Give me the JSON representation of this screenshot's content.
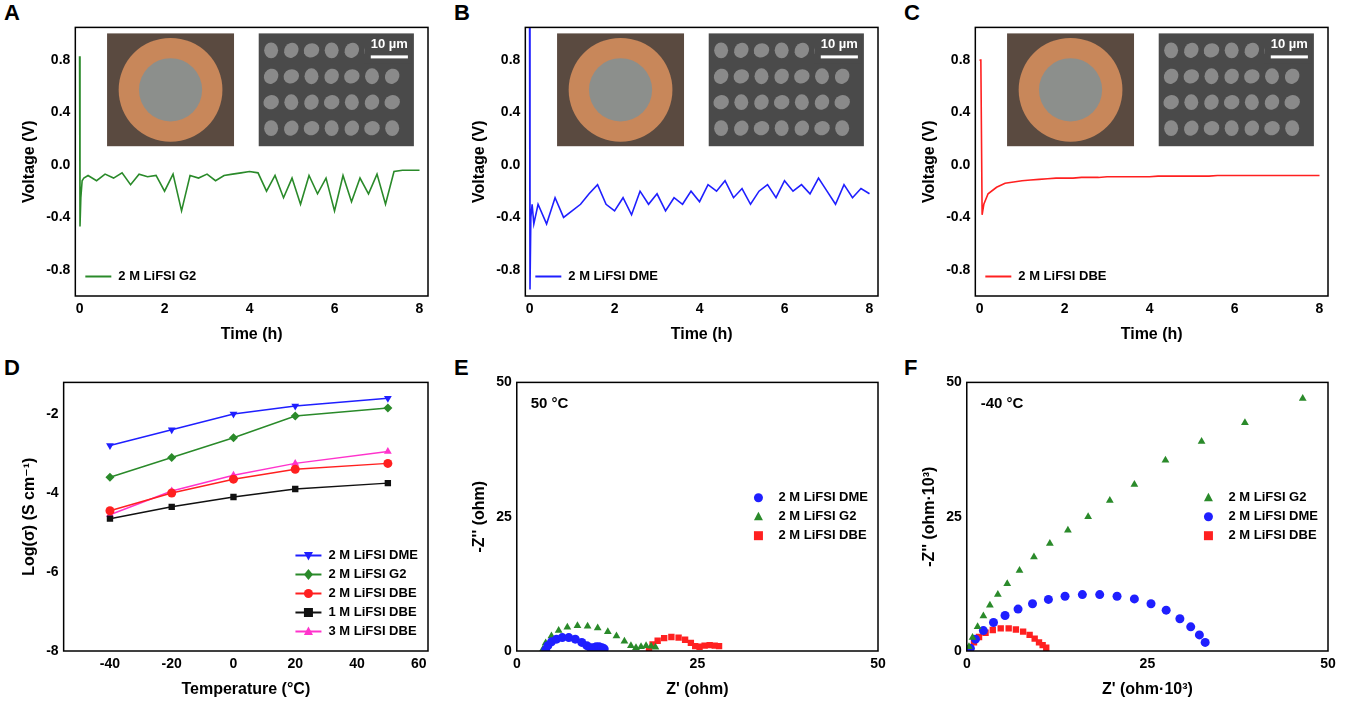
{
  "chart_data": [
    {
      "panel": "A",
      "type": "line",
      "x_label": "Time (h)",
      "y_label": "Voltage (V)",
      "xlim": [
        -0.1,
        8.2
      ],
      "xticks": [
        0,
        2,
        4,
        6,
        8
      ],
      "ylim": [
        -1.0,
        1.05
      ],
      "yticks": [
        -0.8,
        -0.4,
        {
          "value": 0,
          "label": "0.0"
        },
        0.4,
        0.8
      ],
      "grid": false,
      "legend": "lower left",
      "inset_label": "10 µm",
      "x": [
        0,
        0.01,
        0.03,
        0.06,
        0.1,
        0.2,
        0.4,
        0.6,
        0.8,
        1.0,
        1.2,
        1.4,
        1.6,
        1.8,
        2.0,
        2.2,
        2.4,
        2.6,
        2.8,
        3.0,
        3.2,
        3.4,
        3.6,
        3.8,
        4.0,
        4.2,
        4.4,
        4.6,
        4.8,
        5.0,
        5.2,
        5.4,
        5.6,
        5.8,
        6.0,
        6.2,
        6.4,
        6.6,
        6.8,
        7.0,
        7.2,
        7.4,
        7.6,
        7.8,
        8.0
      ],
      "series": [
        {
          "name": "2 M LiFSI G2",
          "color": "#2a8a2a",
          "values": [
            0.83,
            -0.47,
            -0.25,
            -0.12,
            -0.1,
            -0.08,
            -0.12,
            -0.07,
            -0.1,
            -0.06,
            -0.15,
            -0.07,
            -0.09,
            -0.08,
            -0.2,
            -0.07,
            -0.35,
            -0.08,
            -0.1,
            -0.07,
            -0.12,
            -0.08,
            -0.07,
            -0.06,
            -0.05,
            -0.06,
            -0.2,
            -0.08,
            -0.25,
            -0.1,
            -0.3,
            -0.08,
            -0.22,
            -0.1,
            -0.35,
            -0.08,
            -0.28,
            -0.1,
            -0.22,
            -0.07,
            -0.3,
            -0.05,
            -0.04,
            -0.04,
            -0.04
          ]
        }
      ]
    },
    {
      "panel": "B",
      "type": "line",
      "x_label": "Time (h)",
      "y_label": "Voltage (V)",
      "xlim": [
        -0.1,
        8.2
      ],
      "xticks": [
        0,
        2,
        4,
        6,
        8
      ],
      "ylim": [
        -1.0,
        1.05
      ],
      "yticks": [
        -0.8,
        -0.4,
        {
          "value": 0,
          "label": "0.0"
        },
        0.4,
        0.8
      ],
      "grid": false,
      "legend": "lower left",
      "inset_label": "10 µm",
      "x": [
        0,
        0.01,
        0.03,
        0.06,
        0.1,
        0.2,
        0.4,
        0.6,
        0.8,
        1.0,
        1.2,
        1.4,
        1.6,
        1.8,
        2.0,
        2.2,
        2.4,
        2.6,
        2.8,
        3.0,
        3.2,
        3.4,
        3.6,
        3.8,
        4.0,
        4.2,
        4.4,
        4.6,
        4.8,
        5.0,
        5.2,
        5.4,
        5.6,
        5.8,
        6.0,
        6.2,
        6.4,
        6.6,
        6.8,
        7.0,
        7.2,
        7.4,
        7.6,
        7.8,
        8.0
      ],
      "series": [
        {
          "name": "2 M LiFSI DME",
          "color": "#1f1fff",
          "values": [
            1.05,
            -0.95,
            -0.4,
            -0.3,
            -0.45,
            -0.3,
            -0.45,
            -0.25,
            -0.4,
            -0.35,
            -0.3,
            -0.22,
            -0.15,
            -0.3,
            -0.35,
            -0.25,
            -0.38,
            -0.2,
            -0.3,
            -0.22,
            -0.35,
            -0.25,
            -0.3,
            -0.2,
            -0.28,
            -0.15,
            -0.2,
            -0.12,
            -0.25,
            -0.18,
            -0.3,
            -0.2,
            -0.15,
            -0.25,
            -0.12,
            -0.2,
            -0.15,
            -0.22,
            -0.1,
            -0.2,
            -0.3,
            -0.15,
            -0.25,
            -0.18,
            -0.22
          ]
        }
      ]
    },
    {
      "panel": "C",
      "type": "line",
      "x_label": "Time (h)",
      "y_label": "Voltage (V)",
      "xlim": [
        -0.1,
        8.2
      ],
      "xticks": [
        0,
        2,
        4,
        6,
        8
      ],
      "ylim": [
        -1.0,
        1.05
      ],
      "yticks": [
        -0.8,
        -0.4,
        {
          "value": 0,
          "label": "0.0"
        },
        0.4,
        0.8
      ],
      "grid": false,
      "legend": "lower left",
      "inset_label": "10 µm",
      "x": [
        0,
        0.01,
        0.03,
        0.06,
        0.1,
        0.2,
        0.4,
        0.6,
        0.8,
        1.0,
        1.2,
        1.4,
        1.6,
        1.8,
        2.0,
        2.2,
        2.4,
        2.6,
        2.8,
        3.0,
        3.2,
        3.4,
        3.6,
        3.8,
        4.0,
        4.2,
        4.4,
        4.6,
        4.8,
        5.0,
        5.2,
        5.4,
        5.6,
        5.8,
        6.0,
        6.2,
        6.4,
        6.6,
        6.8,
        7.0,
        7.2,
        7.4,
        7.6,
        7.8,
        8.0
      ],
      "series": [
        {
          "name": "2 M LiFSI DBE",
          "color": "#ff2020",
          "values": [
            0.8,
            0.8,
            0.8,
            -0.38,
            -0.3,
            -0.22,
            -0.17,
            -0.14,
            -0.13,
            -0.12,
            -0.115,
            -0.11,
            -0.105,
            -0.1,
            -0.1,
            -0.1,
            -0.095,
            -0.095,
            -0.095,
            -0.09,
            -0.09,
            -0.09,
            -0.09,
            -0.09,
            -0.09,
            -0.085,
            -0.085,
            -0.085,
            -0.085,
            -0.085,
            -0.085,
            -0.085,
            -0.08,
            -0.08,
            -0.08,
            -0.08,
            -0.08,
            -0.08,
            -0.08,
            -0.08,
            -0.08,
            -0.08,
            -0.08,
            -0.08,
            -0.08
          ]
        }
      ]
    },
    {
      "panel": "D",
      "type": "line",
      "x_label": "Temperature (°C)",
      "y_label": "Log(σ) (S cm⁻¹)",
      "xlim": [
        -55,
        63
      ],
      "xticks": [
        -40,
        -20,
        0,
        20,
        40,
        60
      ],
      "ylim": [
        -8,
        -1.2
      ],
      "yticks": [
        -8,
        -6,
        -4,
        -2
      ],
      "grid": false,
      "legend": "lower right",
      "x": [
        -40,
        -20,
        0,
        20,
        50
      ],
      "series": [
        {
          "name": "2 M LiFSI DME",
          "color": "#1f1fff",
          "marker": "triangle_down",
          "values": [
            -2.8,
            -2.4,
            -2.0,
            -1.8,
            -1.6
          ]
        },
        {
          "name": "2 M LiFSI G2",
          "color": "#2a8a2a",
          "marker": "diamond",
          "values": [
            -3.6,
            -3.1,
            -2.6,
            -2.05,
            -1.85
          ]
        },
        {
          "name": "2 M LiFSI DBE",
          "color": "#ff2020",
          "marker": "circle",
          "values": [
            -4.45,
            -4.0,
            -3.65,
            -3.4,
            -3.25
          ]
        },
        {
          "name": "1 M LiFSI DBE",
          "color": "#111111",
          "marker": "square",
          "values": [
            -4.65,
            -4.35,
            -4.1,
            -3.9,
            -3.75
          ]
        },
        {
          "name": "3 M LiFSI DBE",
          "color": "#ff33cc",
          "marker": "triangle",
          "values": [
            -4.55,
            -3.95,
            -3.55,
            -3.25,
            -2.95
          ]
        }
      ]
    },
    {
      "panel": "E",
      "type": "scatter",
      "x_label": "Z' (ohm)",
      "y_label": "-Z'' (ohm)",
      "annotation": "50 °C",
      "xlim": [
        0,
        50
      ],
      "xticks": [
        0,
        25,
        50
      ],
      "ylim": [
        0,
        50
      ],
      "yticks": [
        0,
        25,
        50
      ],
      "grid": false,
      "legend": "right",
      "series": [
        {
          "name": "2 M LiFSI DME",
          "color": "#1f1fff",
          "marker": "circle",
          "x": [
            4.0,
            4.3,
            4.8,
            5.5,
            6.3,
            7.2,
            8.1,
            9.0,
            9.7,
            10.2,
            10.6,
            11.0,
            11.4,
            11.8,
            12.1
          ],
          "values": [
            0.2,
            1.0,
            1.7,
            2.2,
            2.5,
            2.5,
            2.2,
            1.6,
            1.0,
            0.6,
            0.6,
            0.8,
            0.8,
            0.6,
            0.4
          ]
        },
        {
          "name": "2 M LiFSI G2",
          "color": "#2a8a2a",
          "marker": "triangle",
          "x": [
            3.6,
            4.0,
            4.8,
            5.8,
            7.0,
            8.4,
            9.8,
            11.2,
            12.6,
            13.8,
            14.9,
            15.8,
            16.5,
            17.2,
            17.9,
            18.6,
            19.2
          ],
          "values": [
            0.3,
            1.5,
            2.8,
            3.8,
            4.4,
            4.7,
            4.6,
            4.3,
            3.6,
            2.8,
            1.8,
            1.0,
            0.6,
            0.8,
            1.0,
            0.9,
            0.7
          ]
        },
        {
          "name": "2 M LiFSI DBE",
          "color": "#ff2020",
          "marker": "square",
          "x": [
            18.3,
            18.8,
            19.5,
            20.4,
            21.4,
            22.4,
            23.3,
            24.1,
            24.7,
            25.3,
            26.0,
            26.7,
            27.4,
            28.0
          ],
          "values": [
            0.3,
            1.2,
            1.9,
            2.4,
            2.6,
            2.5,
            2.1,
            1.5,
            0.9,
            0.8,
            1.0,
            1.1,
            1.0,
            0.9
          ]
        }
      ]
    },
    {
      "panel": "F",
      "type": "scatter",
      "x_label": "Z' (ohm·10³)",
      "y_label": "-Z'' (ohm·10³)",
      "annotation": "-40 °C",
      "xlim": [
        0,
        50
      ],
      "xticks": [
        0,
        25,
        50
      ],
      "ylim": [
        0,
        50
      ],
      "yticks": [
        0,
        25,
        50
      ],
      "grid": false,
      "legend": "right",
      "series": [
        {
          "name": "2 M LiFSI G2",
          "color": "#2a8a2a",
          "marker": "triangle",
          "x": [
            0.3,
            0.8,
            1.5,
            2.3,
            3.2,
            4.3,
            5.6,
            7.3,
            9.3,
            11.5,
            14.0,
            16.8,
            19.8,
            23.2,
            27.5,
            32.5,
            38.5,
            46.5
          ],
          "values": [
            0.8,
            2.5,
            4.5,
            6.5,
            8.5,
            10.5,
            12.5,
            15,
            17.5,
            20,
            22.5,
            25,
            28,
            31,
            35.5,
            39,
            42.5,
            47
          ]
        },
        {
          "name": "2 M LiFSI DME",
          "color": "#1f1fff",
          "marker": "circle",
          "x": [
            0.5,
            1.2,
            2.3,
            3.7,
            5.3,
            7.1,
            9.1,
            11.3,
            13.6,
            16.0,
            18.4,
            20.8,
            23.2,
            25.5,
            27.6,
            29.5,
            31.0,
            32.2,
            33.0
          ],
          "values": [
            0.5,
            2.2,
            3.8,
            5.3,
            6.6,
            7.8,
            8.8,
            9.6,
            10.2,
            10.5,
            10.5,
            10.2,
            9.7,
            8.8,
            7.6,
            6.0,
            4.5,
            3.0,
            1.6
          ]
        },
        {
          "name": "2 M LiFSI DBE",
          "color": "#ff2020",
          "marker": "square",
          "x": [
            0.5,
            1.0,
            1.7,
            2.6,
            3.6,
            4.7,
            5.8,
            6.8,
            7.8,
            8.7,
            9.4,
            10.0,
            10.5,
            11.0
          ],
          "values": [
            0.5,
            1.6,
            2.6,
            3.4,
            3.9,
            4.2,
            4.2,
            4.0,
            3.6,
            3.0,
            2.3,
            1.6,
            1.1,
            0.6
          ]
        }
      ]
    }
  ]
}
